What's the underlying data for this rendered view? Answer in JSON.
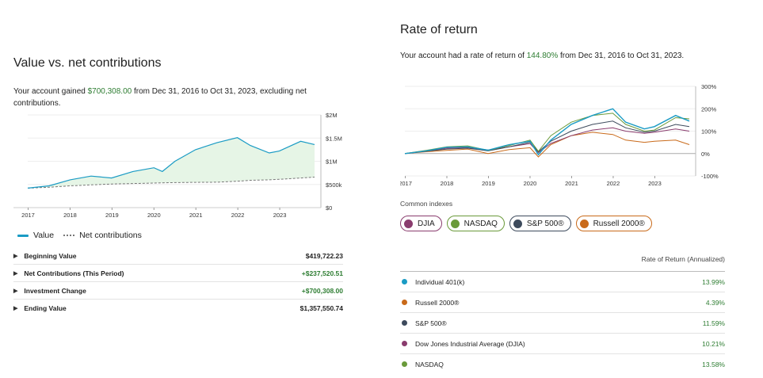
{
  "colors": {
    "value_line": "#1a9bc4",
    "value_fill": "#e6f5e6",
    "positive": "#2e7d32",
    "individual_401k": "#1a9bc4",
    "russell_2000": "#c96a1a",
    "sp500": "#3d4a5c",
    "djia": "#8a3c6e",
    "nasdaq": "#6a9a3a"
  },
  "left": {
    "title": "Value vs. net contributions",
    "subtitle_pre": "Your account gained ",
    "subtitle_amount": "$700,308.00",
    "subtitle_post": " from Dec 31, 2016 to Oct 31, 2023, excluding net contributions.",
    "legend": {
      "value_label": "Value",
      "net_label": "Net contributions"
    },
    "summary": [
      {
        "label": "Beginning Value",
        "value": "$419,722.23",
        "positive": false
      },
      {
        "label": "Net Contributions (This Period)",
        "value": "+$237,520.51",
        "positive": true
      },
      {
        "label": "Investment Change",
        "value": "+$700,308.00",
        "positive": true
      },
      {
        "label": "Ending Value",
        "value": "$1,357,550.74",
        "positive": false
      }
    ]
  },
  "right": {
    "title": "Rate of return",
    "subtitle_pre": "Your account had a rate of return of ",
    "subtitle_rate": "144.80%",
    "subtitle_post": " from Dec 31, 2016 to Oct 31, 2023.",
    "indexes_label": "Common indexes",
    "chips": [
      {
        "label": "DJIA",
        "color": "#8a3c6e"
      },
      {
        "label": "NASDAQ",
        "color": "#6a9a3a"
      },
      {
        "label": "S&P 500®",
        "color": "#3d4a5c"
      },
      {
        "label": "Russell 2000®",
        "color": "#c96a1a"
      }
    ],
    "table_header": "Rate of Return (Annualized)",
    "rows": [
      {
        "label": "Individual 401(k)",
        "value": "13.99%",
        "color": "#1a9bc4"
      },
      {
        "label": "Russell 2000®",
        "value": "4.39%",
        "color": "#c96a1a"
      },
      {
        "label": "S&P 500®",
        "value": "11.59%",
        "color": "#3d4a5c"
      },
      {
        "label": "Dow Jones Industrial Average (DJIA)",
        "value": "10.21%",
        "color": "#8a3c6e"
      },
      {
        "label": "NASDAQ",
        "value": "13.58%",
        "color": "#6a9a3a"
      }
    ]
  },
  "chart_data": [
    {
      "type": "area",
      "x_tick_labels": [
        "2017",
        "2018",
        "2019",
        "2020",
        "2021",
        "2022",
        "2023"
      ],
      "y_tick_labels": [
        "$2M",
        "$1.5M",
        "$1M",
        "$500k",
        "$0"
      ],
      "ylim": [
        0,
        2000000
      ],
      "x": [
        2016.99,
        2017.5,
        2018.0,
        2018.5,
        2018.99,
        2019.5,
        2020.0,
        2020.2,
        2020.5,
        2020.99,
        2021.5,
        2021.99,
        2022.3,
        2022.75,
        2022.99,
        2023.5,
        2023.83
      ],
      "series": [
        {
          "name": "Value",
          "values": [
            420000,
            470000,
            600000,
            680000,
            640000,
            780000,
            860000,
            780000,
            1000000,
            1250000,
            1400000,
            1510000,
            1340000,
            1180000,
            1220000,
            1430000,
            1360000
          ]
        },
        {
          "name": "Net contributions",
          "values": [
            420000,
            440000,
            470000,
            490000,
            510000,
            520000,
            530000,
            535000,
            540000,
            545000,
            548000,
            570000,
            590000,
            600000,
            610000,
            640000,
            658000
          ]
        }
      ]
    },
    {
      "type": "line",
      "x_tick_labels": [
        "2017",
        "2018",
        "2019",
        "2020",
        "2021",
        "2022",
        "2023"
      ],
      "y_tick_labels": [
        "300%",
        "200%",
        "100%",
        "0%",
        "-100%"
      ],
      "ylim": [
        -100,
        300
      ],
      "x": [
        2016.99,
        2017.5,
        2018.0,
        2018.5,
        2018.99,
        2019.5,
        2020.0,
        2020.2,
        2020.5,
        2020.99,
        2021.5,
        2021.99,
        2022.3,
        2022.75,
        2022.99,
        2023.5,
        2023.83
      ],
      "series": [
        {
          "name": "Individual 401(k)",
          "values": [
            0,
            12,
            28,
            30,
            15,
            40,
            55,
            -5,
            60,
            130,
            170,
            200,
            140,
            110,
            120,
            170,
            145
          ]
        },
        {
          "name": "NASDAQ",
          "values": [
            0,
            14,
            30,
            34,
            14,
            36,
            60,
            10,
            80,
            140,
            170,
            180,
            130,
            100,
            105,
            160,
            155
          ]
        },
        {
          "name": "S&P 500®",
          "values": [
            0,
            10,
            20,
            24,
            12,
            30,
            50,
            8,
            55,
            100,
            130,
            145,
            115,
            95,
            100,
            130,
            120
          ]
        },
        {
          "name": "DJIA",
          "values": [
            0,
            10,
            24,
            26,
            16,
            30,
            44,
            4,
            45,
            80,
            105,
            115,
            100,
            90,
            95,
            110,
            100
          ]
        },
        {
          "name": "Russell 2000®",
          "values": [
            0,
            8,
            14,
            20,
            0,
            18,
            26,
            -15,
            40,
            80,
            95,
            85,
            60,
            50,
            55,
            60,
            40
          ]
        }
      ]
    }
  ]
}
